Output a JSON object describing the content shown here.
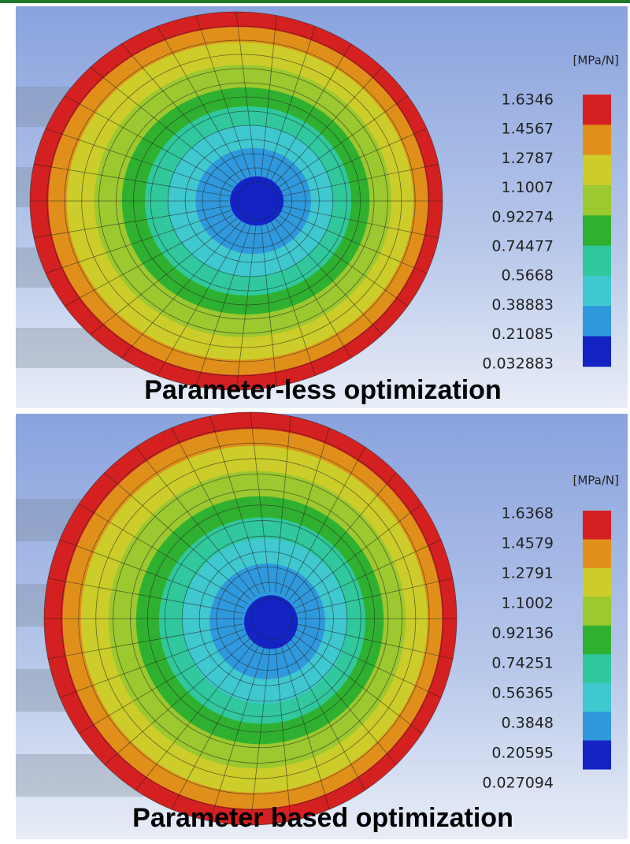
{
  "panels": [
    {
      "unit": "[MPa/N]",
      "legend": [
        1.6346,
        1.4567,
        1.2787,
        1.1007,
        0.92274,
        0.74477,
        0.5668,
        0.38883,
        0.21085,
        0.032883
      ],
      "caption": "Parameter-less optimization"
    },
    {
      "unit": "[MPa/N]",
      "legend": [
        1.6368,
        1.4579,
        1.2791,
        1.1002,
        0.92136,
        0.74251,
        0.56365,
        0.3848,
        0.20595,
        0.027094
      ],
      "caption": "Parameter based optimization"
    }
  ]
}
